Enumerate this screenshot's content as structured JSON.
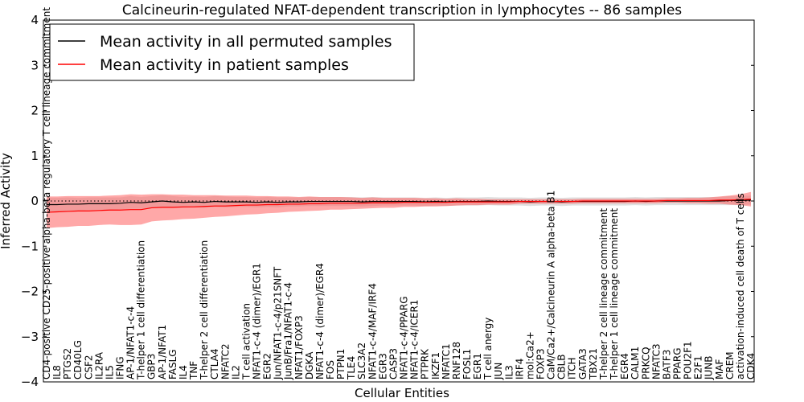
{
  "chart_data": {
    "type": "line",
    "title": "Calcineurin-regulated NFAT-dependent transcription in lymphocytes -- 86 samples",
    "xlabel": "Cellular Entities",
    "ylabel": "Inferred Activity",
    "ylim": [
      -4,
      4
    ],
    "yticks": [
      "−4",
      "−3",
      "−2",
      "−1",
      "0",
      "1",
      "2",
      "3",
      "4"
    ],
    "reference_line": 0,
    "legend": {
      "position": "top-left",
      "entries": [
        {
          "label": "Mean activity in all permuted samples",
          "color": "#000000"
        },
        {
          "label": "Mean activity in patient samples",
          "color": "#ff0000"
        }
      ]
    },
    "categories": [
      "CD4-positive CD25-positive alpha-beta regulatory T cell lineage commitment",
      "IL8",
      "PTGS2",
      "CD40LG",
      "CSF2",
      "IL2RA",
      "IL5",
      "IFNG",
      "AP-1/NFAT1-c-4",
      "T-helper 1 cell differentiation",
      "GBP3",
      "AP-1/NFAT1",
      "FASLG",
      "IL4",
      "TNF",
      "T-helper 2 cell differentiation",
      "CTLA4",
      "NFATC2",
      "IL2",
      "T cell activation",
      "NFAT1-c-4 (dimer)/EGR1",
      "EGR2",
      "Jun/NFAT1-c-4/p21SNFT",
      "JunB/Fra1/NFAT1-c-4",
      "NFAT1/FOXP3",
      "DGKA",
      "NFAT1-c-4 (dimer)/EGR4",
      "FOS",
      "PTPN1",
      "TLE4",
      "SLC3A2",
      "NFAT1-c-4/MAF/IRF4",
      "EGR3",
      "CASP3",
      "NFAT1-c-4/PPARG",
      "NFAT1-c-4/ICER1",
      "PTPRK",
      "IKZF1",
      "NFATC1",
      "RNF128",
      "FOSL1",
      "EGR1",
      "T cell anergy",
      "JUN",
      "IL3",
      "IRF4",
      "mol:Ca2+",
      "FOXP3",
      "CaM/Ca2+/Calcineurin A alpha-beta B1",
      "CBLB",
      "ITCH",
      "GATA3",
      "TBX21",
      "T-helper 2 cell lineage commitment",
      "T-helper 1 cell lineage commitment",
      "EGR4",
      "CALM1",
      "PRKCQ",
      "NFATC3",
      "BATF3",
      "PPARG",
      "POU2F1",
      "E2F1",
      "JUNB",
      "MAF",
      "CREM",
      "activation-induced cell death of T cells",
      "CDK4"
    ],
    "series": [
      {
        "name": "Mean activity in patient samples",
        "color": "#ff0000",
        "values": [
          -0.25,
          -0.24,
          -0.23,
          -0.22,
          -0.22,
          -0.21,
          -0.2,
          -0.2,
          -0.19,
          -0.19,
          -0.15,
          -0.14,
          -0.14,
          -0.13,
          -0.13,
          -0.12,
          -0.11,
          -0.11,
          -0.1,
          -0.09,
          -0.09,
          -0.08,
          -0.08,
          -0.07,
          -0.07,
          -0.06,
          -0.06,
          -0.05,
          -0.05,
          -0.05,
          -0.05,
          -0.04,
          -0.04,
          -0.04,
          -0.03,
          -0.03,
          -0.03,
          -0.03,
          -0.03,
          -0.02,
          -0.02,
          -0.02,
          -0.02,
          -0.02,
          -0.02,
          -0.01,
          -0.01,
          -0.01,
          -0.01,
          -0.01,
          -0.01,
          0,
          0,
          0,
          0,
          0,
          0,
          0,
          0,
          0.01,
          0.01,
          0.01,
          0.01,
          0.01,
          0.02,
          0.02,
          0.03,
          0.04
        ],
        "band": [
          0.35,
          0.34,
          0.34,
          0.33,
          0.33,
          0.32,
          0.32,
          0.33,
          0.34,
          0.33,
          0.3,
          0.29,
          0.28,
          0.27,
          0.26,
          0.25,
          0.24,
          0.23,
          0.22,
          0.21,
          0.2,
          0.19,
          0.18,
          0.17,
          0.16,
          0.16,
          0.15,
          0.14,
          0.14,
          0.13,
          0.12,
          0.12,
          0.11,
          0.11,
          0.1,
          0.1,
          0.09,
          0.09,
          0.08,
          0.08,
          0.07,
          0.07,
          0.06,
          0.06,
          0.06,
          0.05,
          0.05,
          0.05,
          0.05,
          0.05,
          0.05,
          0.05,
          0.05,
          0.05,
          0.05,
          0.05,
          0.05,
          0.05,
          0.05,
          0.05,
          0.05,
          0.06,
          0.06,
          0.07,
          0.08,
          0.1,
          0.12,
          0.16
        ]
      },
      {
        "name": "Mean activity in all permuted samples",
        "color": "#000000",
        "values": [
          -0.08,
          -0.08,
          -0.07,
          -0.07,
          -0.06,
          -0.06,
          -0.06,
          -0.05,
          -0.03,
          -0.04,
          -0.02,
          0,
          -0.02,
          -0.03,
          -0.02,
          -0.03,
          -0.01,
          -0.02,
          -0.02,
          -0.02,
          -0.03,
          -0.02,
          -0.03,
          -0.02,
          -0.02,
          -0.01,
          -0.01,
          -0.01,
          -0.01,
          -0.01,
          -0.02,
          -0.01,
          -0.01,
          -0.01,
          -0.01,
          -0.01,
          -0.02,
          -0.01,
          -0.02,
          -0.01,
          -0.01,
          -0.01,
          0,
          -0.01,
          -0.01,
          -0.01,
          -0.02,
          -0.01,
          -0.01,
          -0.02,
          -0.01,
          -0.01,
          -0.01,
          -0.01,
          -0.01,
          -0.01,
          0,
          -0.01,
          0,
          0,
          0,
          0,
          0,
          0,
          0,
          0.01,
          0.01,
          0.02
        ],
        "band": [
          0.15,
          0.15,
          0.15,
          0.14,
          0.14,
          0.14,
          0.14,
          0.13,
          0.14,
          0.13,
          0.13,
          0.13,
          0.13,
          0.12,
          0.12,
          0.12,
          0.12,
          0.12,
          0.11,
          0.11,
          0.11,
          0.11,
          0.11,
          0.1,
          0.1,
          0.1,
          0.1,
          0.1,
          0.1,
          0.1,
          0.1,
          0.1,
          0.09,
          0.09,
          0.09,
          0.09,
          0.09,
          0.09,
          0.09,
          0.09,
          0.09,
          0.09,
          0.09,
          0.09,
          0.09,
          0.09,
          0.09,
          0.09,
          0.09,
          0.09,
          0.09,
          0.09,
          0.09,
          0.09,
          0.09,
          0.09,
          0.09,
          0.09,
          0.09,
          0.09,
          0.09,
          0.09,
          0.09,
          0.09,
          0.09,
          0.1,
          0.1,
          0.1
        ]
      }
    ]
  }
}
